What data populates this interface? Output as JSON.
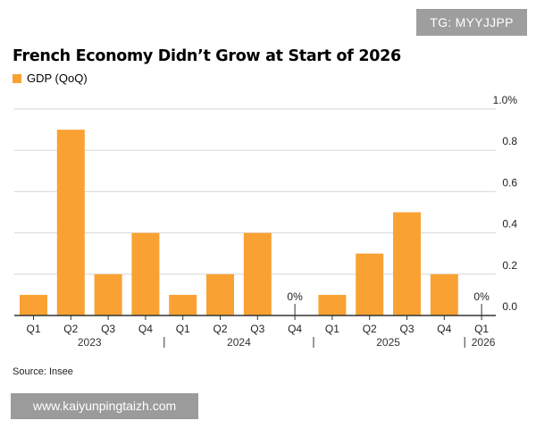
{
  "watermark_top": "TG: MYYJJPP",
  "watermark_bottom": "www.kaiyunpingtaizh.com",
  "source": "Source: Insee",
  "colors": {
    "bar": "#F9A233",
    "grid": "#d6d6d6",
    "axis": "#333333"
  },
  "chart_data": {
    "type": "bar",
    "title": "French Economy Didn’t Grow at Start of 2026",
    "series": [
      {
        "name": "GDP (QoQ)",
        "values": [
          0.1,
          0.9,
          0.2,
          0.4,
          0.1,
          0.2,
          0.4,
          0,
          0.1,
          0.3,
          0.5,
          0.2,
          0
        ]
      }
    ],
    "categories": [
      "Q1",
      "Q2",
      "Q3",
      "Q4",
      "Q1",
      "Q2",
      "Q3",
      "Q4",
      "Q1",
      "Q2",
      "Q3",
      "Q4",
      "Q1"
    ],
    "years": [
      "2023",
      "2024",
      "2025",
      "2026"
    ],
    "data_labels": [
      "",
      "",
      "",
      "",
      "",
      "",
      "",
      "0%",
      "",
      "",
      "",
      "",
      "0%"
    ],
    "yticks": [
      "1.0%",
      "0.8",
      "0.6",
      "0.4",
      "0.2",
      "0.0"
    ],
    "ylim": [
      0,
      1.0
    ],
    "grid": true,
    "yaxis_side": "right",
    "legend_position": "top-left"
  }
}
